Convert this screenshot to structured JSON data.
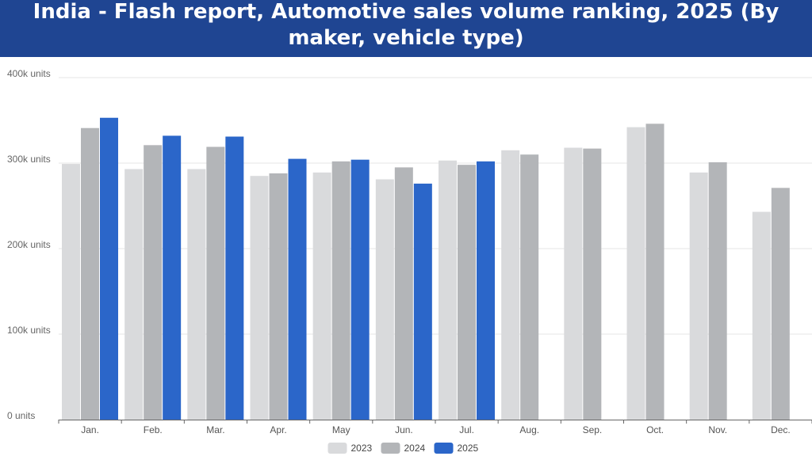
{
  "header": {
    "title": "India - Flash report, Automotive sales volume ranking, 2025 (By maker, vehicle type)"
  },
  "chart_data": {
    "type": "bar",
    "categories": [
      "Jan.",
      "Feb.",
      "Mar.",
      "Apr.",
      "May",
      "Jun.",
      "Jul.",
      "Aug.",
      "Sep.",
      "Oct.",
      "Nov.",
      "Dec."
    ],
    "series": [
      {
        "name": "2023",
        "color": "#d9dadc",
        "values": [
          299000,
          293000,
          293000,
          285000,
          289000,
          281000,
          303000,
          315000,
          318000,
          342000,
          289000,
          243000
        ]
      },
      {
        "name": "2024",
        "color": "#b3b5b8",
        "values": [
          341000,
          321000,
          319000,
          288000,
          302000,
          295000,
          298000,
          310000,
          317000,
          346000,
          301000,
          271000
        ]
      },
      {
        "name": "2025",
        "color": "#2b66c9",
        "values": [
          353000,
          332000,
          331000,
          305000,
          304000,
          276000,
          302000,
          null,
          null,
          null,
          null,
          null
        ]
      }
    ],
    "y_ticks": [
      "0 units",
      "100k units",
      "200k units",
      "300k units",
      "400k units"
    ],
    "ylim": [
      0,
      400000
    ],
    "grid": true,
    "legend_position": "bottom-center"
  }
}
